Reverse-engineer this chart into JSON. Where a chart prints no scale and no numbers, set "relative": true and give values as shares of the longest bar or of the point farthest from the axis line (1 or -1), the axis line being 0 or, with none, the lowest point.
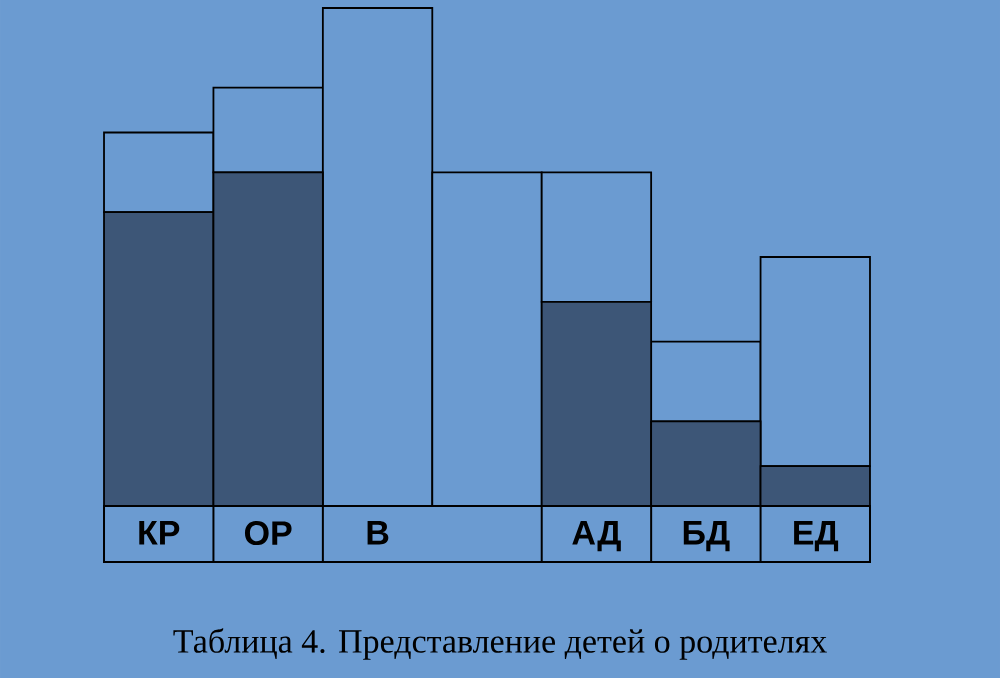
{
  "chart_data": {
    "type": "bar",
    "title": "Таблица 4. Представление детей о родителях",
    "relative": true,
    "stacked": true,
    "categories": [
      "КР",
      "ОР",
      "В",
      null,
      "АД",
      "БД",
      "ЕД"
    ],
    "series": [
      {
        "color": "#3d5677",
        "values": [
          0.59,
          0.67,
          0,
          0,
          0.41,
          0.17,
          0.08
        ]
      },
      {
        "color": "#6b9bd1",
        "values": [
          0.16,
          0.17,
          1.0,
          0.67,
          0.26,
          0.16,
          0.42
        ]
      }
    ]
  }
}
